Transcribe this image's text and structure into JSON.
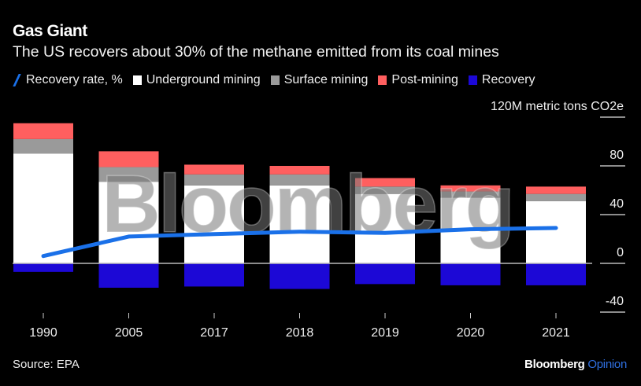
{
  "header": {
    "title": "Gas Giant",
    "subtitle": "The US recovers about 30% of the methane emitted from its coal mines"
  },
  "footer": {
    "source": "Source: EPA",
    "brand": "Bloomberg",
    "brand_accent": "Opinion"
  },
  "watermark": "Bloomberg",
  "chart_data": {
    "type": "bar",
    "stacked": true,
    "title": "Gas Giant",
    "subtitle": "The US recovers about 30% of the methane emitted from its coal mines",
    "categories": [
      "1990",
      "2005",
      "2017",
      "2018",
      "2019",
      "2020",
      "2021"
    ],
    "y_unit_label": "120M metric tons CO2e",
    "y_ticks": [
      120,
      80,
      40,
      0,
      -40
    ],
    "y_tick_labels": [
      "120M metric tons CO2e",
      "80",
      "40",
      "0",
      "-40"
    ],
    "ylim": [
      -45,
      125
    ],
    "y_axis_side": "right",
    "grid": false,
    "legend_placement": "top",
    "series": [
      {
        "name": "Underground mining",
        "type": "bar",
        "color": "#ffffff",
        "values": [
          90,
          67,
          64,
          64,
          57,
          54,
          51
        ]
      },
      {
        "name": "Surface mining",
        "type": "bar",
        "color": "#9a9a9a",
        "values": [
          12,
          12,
          9,
          9,
          6,
          5,
          6
        ]
      },
      {
        "name": "Post-mining",
        "type": "bar",
        "color": "#ff5f5f",
        "values": [
          13,
          13,
          8,
          7,
          7,
          5,
          6
        ]
      },
      {
        "name": "Recovery",
        "type": "bar",
        "color": "#1c08d6",
        "values": [
          -7,
          -20,
          -19,
          -21,
          -17,
          -18,
          -18
        ]
      },
      {
        "name": "Recovery rate, %",
        "type": "line",
        "color": "#1a70e8",
        "values": [
          6,
          22,
          24,
          26,
          25,
          28,
          29
        ]
      }
    ]
  }
}
